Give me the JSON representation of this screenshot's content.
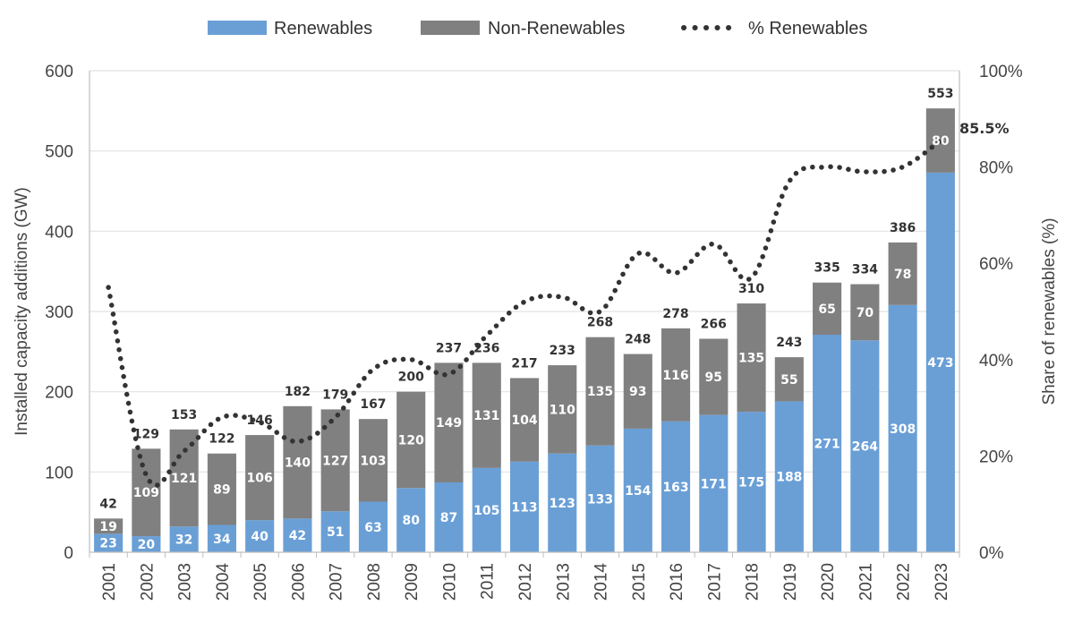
{
  "chart_data": {
    "type": "bar",
    "stacked": true,
    "categories": [
      "2001",
      "2002",
      "2003",
      "2004",
      "2005",
      "2006",
      "2007",
      "2008",
      "2009",
      "2010",
      "2011",
      "2012",
      "2013",
      "2014",
      "2015",
      "2016",
      "2017",
      "2018",
      "2019",
      "2020",
      "2021",
      "2022",
      "2023"
    ],
    "series": [
      {
        "name": "Renewables",
        "color": "#6a9fd6",
        "values": [
          23,
          20,
          32,
          34,
          40,
          42,
          51,
          63,
          80,
          87,
          105,
          113,
          123,
          133,
          154,
          163,
          171,
          175,
          188,
          271,
          264,
          308,
          473
        ]
      },
      {
        "name": "Non-Renewables",
        "color": "#808080",
        "values": [
          19,
          109,
          121,
          89,
          106,
          140,
          127,
          103,
          120,
          149,
          131,
          104,
          110,
          135,
          93,
          116,
          95,
          135,
          55,
          65,
          70,
          78,
          80
        ]
      }
    ],
    "totals": [
      42,
      129,
      153,
      122,
      146,
      182,
      179,
      167,
      200,
      237,
      236,
      217,
      233,
      268,
      248,
      278,
      266,
      310,
      243,
      335,
      334,
      386,
      553
    ],
    "line_series": {
      "name": "% Renewables",
      "axis": "right",
      "color": "#333333",
      "values": [
        55,
        16,
        21,
        28,
        27,
        23,
        28,
        38,
        40,
        37,
        45,
        52,
        53,
        50,
        62,
        58,
        64,
        57,
        77,
        80,
        79,
        80,
        85.5
      ]
    },
    "callout": "85.5%",
    "ylabel": "Installed capacity additions (GW)",
    "ylabel_right": "Share of renewables (%)",
    "ylim": [
      0,
      600
    ],
    "yticks": [
      "0",
      "100",
      "200",
      "300",
      "400",
      "500",
      "600"
    ],
    "ylim_right": [
      0,
      100
    ],
    "yticks_right": [
      "0%",
      "20%",
      "40%",
      "60%",
      "80%",
      "100%"
    ],
    "legend_position": "top-center",
    "grid": true
  }
}
